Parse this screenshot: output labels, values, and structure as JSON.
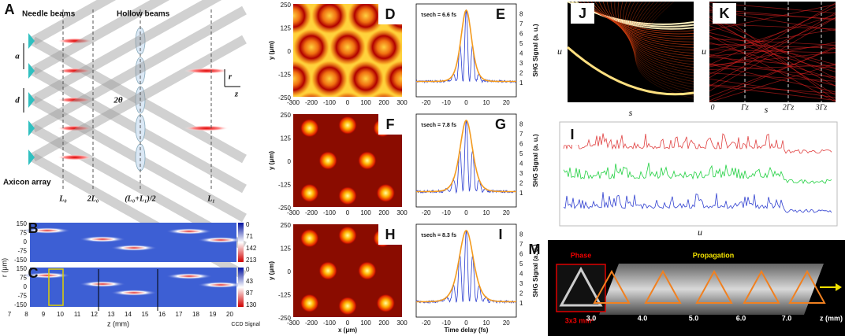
{
  "panel_a": {
    "label": "A",
    "needle": "Needle beams",
    "hollow": "Hollow beams",
    "a": "a",
    "d": "d",
    "angle": "2θ",
    "r": "r",
    "z": "z",
    "axicon": "Axicon array",
    "planes": [
      "L₀",
      "2L₀",
      "(L₀+L₁)/2",
      "L₁"
    ]
  },
  "panel_b": {
    "label": "B",
    "yticks": [
      150,
      75,
      0,
      -75,
      -150
    ],
    "colorbar": [
      0,
      71,
      142,
      213
    ]
  },
  "panel_c": {
    "label": "C",
    "yticks": [
      150,
      75,
      0,
      -75,
      -150
    ],
    "colorbar": [
      0,
      43,
      87,
      130
    ],
    "xticks": [
      7,
      8,
      9,
      10,
      11,
      12,
      13,
      14,
      15,
      16,
      17,
      18,
      19,
      20
    ],
    "xlabel": "z (mm)",
    "ylabel": "r (μm)",
    "colorbar_label": "CCD Signal"
  },
  "maps": [
    {
      "label": "D"
    },
    {
      "label": "F"
    },
    {
      "label": "H"
    }
  ],
  "map_xticks": [
    -300,
    -200,
    -100,
    0,
    100,
    200,
    300
  ],
  "map_yticks": [
    250,
    125,
    0,
    -125,
    -250
  ],
  "map_xlabel": "x (μm)",
  "map_ylabel": "y (μm)",
  "traces": [
    {
      "label": "E",
      "annotation": "τsech = 6.6 fs"
    },
    {
      "label": "G",
      "annotation": "τsech = 7.8 fs"
    },
    {
      "label": "I",
      "annotation": "τsech = 8.3 fs"
    }
  ],
  "trace_xticks": [
    -20,
    -10,
    0,
    10,
    20
  ],
  "trace_yticks": [
    1,
    2,
    3,
    4,
    5,
    6,
    7,
    8
  ],
  "trace_xlabel": "Time delay (fs)",
  "trace_ylabel": "SHG Signal (a. u.)",
  "panel_j": {
    "label": "J",
    "ylabel": "u",
    "xlabel": "s"
  },
  "panel_k": {
    "label": "K",
    "ylabel": "u",
    "xlabel": "s",
    "xticks": [
      "0",
      "Γz",
      "2Γz",
      "3Γz"
    ]
  },
  "panel_i": {
    "label": "I",
    "xlabel": "u"
  },
  "panel_m": {
    "label": "M",
    "phase": "Phase",
    "propagation": "Propagation",
    "size": "3x3 mm²",
    "positions": [
      "3.0",
      "4.0",
      "5.0",
      "6.0",
      "7.0"
    ],
    "zlabel": "z (mm)"
  }
}
